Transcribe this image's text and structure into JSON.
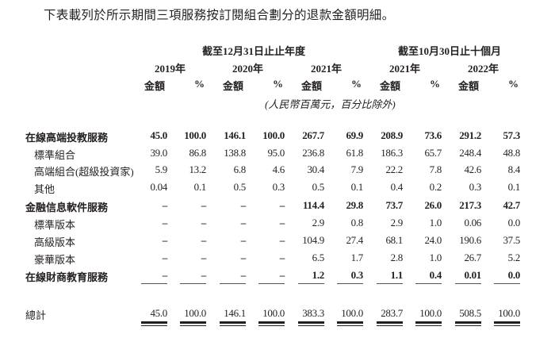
{
  "intro": "下表載列於所示期間三項服務按訂閱組合劃分的退款金額明細。",
  "header": {
    "group_year": "截至12月31日止止年度",
    "group_tenmonth": "截至10月30日止十個月",
    "years": [
      "2019年",
      "2020年",
      "2021年",
      "2021年",
      "2022年"
    ],
    "col_amount": "金額",
    "col_pct": "%",
    "unit_note": "(人民幣百萬元，百分比除外)"
  },
  "rows": [
    {
      "label": "在線高端投教服務",
      "bold": true,
      "values": [
        "45.0",
        "100.0",
        "146.1",
        "100.0",
        "267.7",
        "69.9",
        "208.9",
        "73.6",
        "291.2",
        "57.3"
      ]
    },
    {
      "label": "標準組合",
      "bold": false,
      "values": [
        "39.0",
        "86.8",
        "138.8",
        "95.0",
        "236.8",
        "61.8",
        "186.3",
        "65.7",
        "248.4",
        "48.8"
      ]
    },
    {
      "label": "高端組合(超級投資家)",
      "bold": false,
      "values": [
        "5.9",
        "13.2",
        "6.8",
        "4.6",
        "30.4",
        "7.9",
        "22.2",
        "7.8",
        "42.6",
        "8.4"
      ]
    },
    {
      "label": "其他",
      "bold": false,
      "values": [
        "0.04",
        "0.1",
        "0.5",
        "0.3",
        "0.5",
        "0.1",
        "0.4",
        "0.2",
        "0.3",
        "0.1"
      ]
    },
    {
      "label": "金融信息軟件服務",
      "bold": true,
      "values": [
        "–",
        "–",
        "–",
        "–",
        "114.4",
        "29.8",
        "73.7",
        "26.0",
        "217.3",
        "42.7"
      ]
    },
    {
      "label": "標準版本",
      "bold": false,
      "values": [
        "–",
        "–",
        "–",
        "–",
        "2.9",
        "0.8",
        "2.9",
        "1.0",
        "0.06",
        "0.0"
      ]
    },
    {
      "label": "高級版本",
      "bold": false,
      "values": [
        "–",
        "–",
        "–",
        "–",
        "104.9",
        "27.4",
        "68.1",
        "24.0",
        "190.6",
        "37.5"
      ]
    },
    {
      "label": "豪華版本",
      "bold": false,
      "values": [
        "–",
        "–",
        "–",
        "–",
        "6.5",
        "1.7",
        "2.8",
        "1.0",
        "26.7",
        "5.2"
      ]
    },
    {
      "label": "在線財商教育服務",
      "bold": true,
      "values": [
        "–",
        "–",
        "–",
        "–",
        "1.2",
        "0.3",
        "1.1",
        "0.4",
        "0.01",
        "0.0"
      ]
    }
  ],
  "total": {
    "label": "總計",
    "values": [
      "45.0",
      "100.0",
      "146.1",
      "100.0",
      "383.3",
      "100.0",
      "283.7",
      "100.0",
      "508.5",
      "100.0"
    ]
  },
  "colors": {
    "text": "#231f20",
    "background": "#ffffff"
  }
}
